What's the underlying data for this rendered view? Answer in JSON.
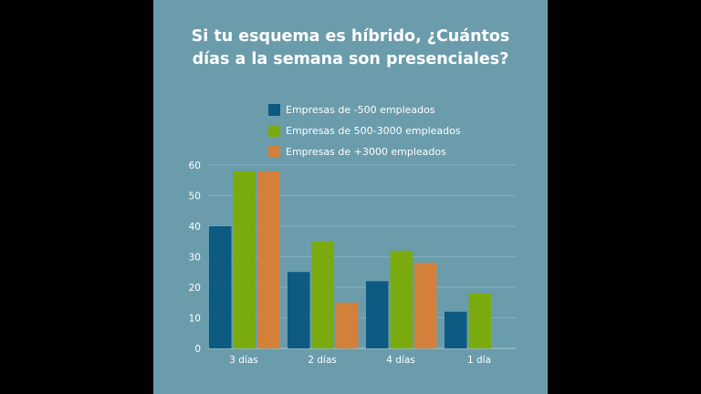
{
  "chart_data": {
    "type": "bar",
    "title": "Si tu esquema es híbrido, ¿Cuántos días a la semana son presenciales?",
    "title_lines": [
      "Si tu esquema es híbrido, ¿Cuántos",
      "días a la semana son presenciales?"
    ],
    "categories": [
      "3 días",
      "2 días",
      "4 días",
      "1 día"
    ],
    "series": [
      {
        "name": "Empresas de -500 empleados",
        "color": "#0d5a82",
        "values": [
          40,
          25,
          22,
          12
        ]
      },
      {
        "name": "Empresas de 500-3000 empleados",
        "color": "#7aab0e",
        "values": [
          58,
          35,
          32,
          18
        ]
      },
      {
        "name": "Empresas de +3000 empleados",
        "color": "#d3803b",
        "values": [
          58,
          15,
          28,
          0
        ]
      }
    ],
    "yticks": [
      0,
      10,
      20,
      30,
      40,
      50,
      60
    ],
    "ylim": [
      0,
      60
    ],
    "grid": true,
    "legend": "top",
    "background": "#6a9cac"
  }
}
